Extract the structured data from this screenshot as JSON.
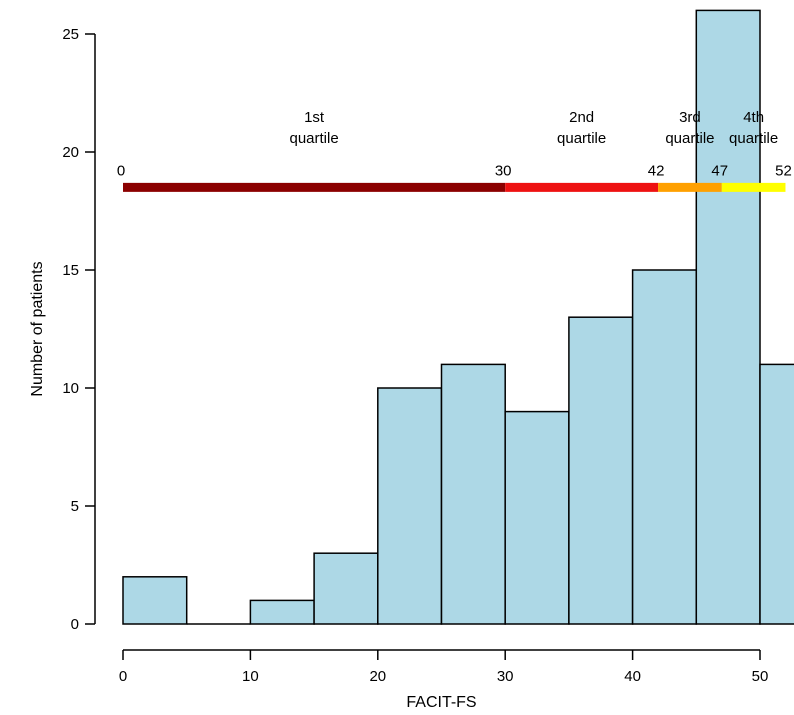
{
  "chart_data": {
    "type": "bar",
    "subtype": "histogram",
    "xlabel": "FACIT-FS",
    "ylabel": "Number of patients",
    "bins": [
      {
        "start": 0,
        "end": 5,
        "count": 2
      },
      {
        "start": 5,
        "end": 10,
        "count": 0
      },
      {
        "start": 10,
        "end": 15,
        "count": 1
      },
      {
        "start": 15,
        "end": 20,
        "count": 3
      },
      {
        "start": 20,
        "end": 25,
        "count": 10
      },
      {
        "start": 25,
        "end": 30,
        "count": 11
      },
      {
        "start": 30,
        "end": 35,
        "count": 9
      },
      {
        "start": 35,
        "end": 40,
        "count": 13
      },
      {
        "start": 40,
        "end": 45,
        "count": 15
      },
      {
        "start": 45,
        "end": 50,
        "count": 26
      },
      {
        "start": 50,
        "end": 55,
        "count": 11
      }
    ],
    "xlim": [
      0,
      52.5
    ],
    "ylim": [
      0,
      26
    ],
    "x_ticks": [
      "0",
      "10",
      "20",
      "30",
      "40",
      "50"
    ],
    "y_ticks": [
      "0",
      "5",
      "10",
      "15",
      "20",
      "25"
    ],
    "bar_color": "#add8e6",
    "grid": false,
    "quartile_bar": {
      "y": 18.5,
      "segments": [
        {
          "start": 0,
          "end": 30,
          "color": "#8b0000"
        },
        {
          "start": 30,
          "end": 42,
          "color": "#ee1111"
        },
        {
          "start": 42,
          "end": 47,
          "color": "#ffa000"
        },
        {
          "start": 47,
          "end": 52,
          "color": "#ffff00"
        }
      ],
      "boundary_labels": [
        {
          "x": 0,
          "label": "0"
        },
        {
          "x": 30,
          "label": "30"
        },
        {
          "x": 42,
          "label": "42"
        },
        {
          "x": 47,
          "label": "47"
        },
        {
          "x": 52,
          "label": "52"
        }
      ],
      "quartile_labels": [
        {
          "x": 15,
          "lines": [
            "1st",
            "quartile"
          ]
        },
        {
          "x": 36,
          "lines": [
            "2nd",
            "quartile"
          ]
        },
        {
          "x": 44.5,
          "lines": [
            "3rd",
            "quartile"
          ]
        },
        {
          "x": 49.5,
          "lines": [
            "4th",
            "quartile"
          ]
        }
      ]
    }
  }
}
